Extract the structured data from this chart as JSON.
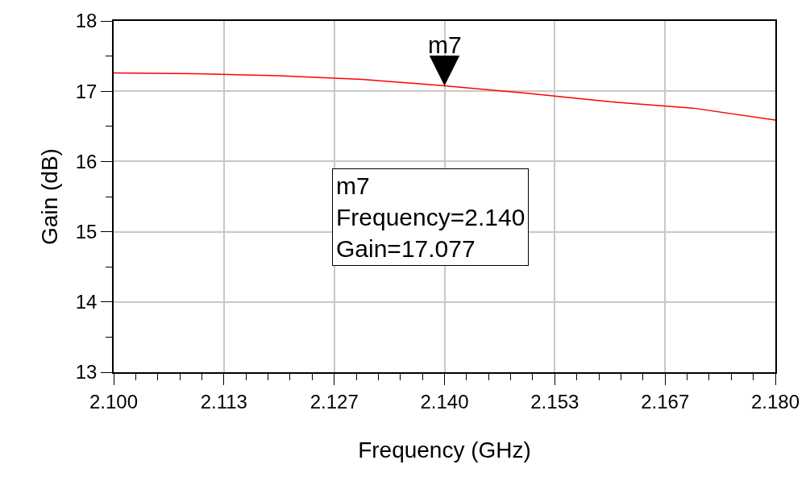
{
  "chart_data": {
    "type": "line",
    "xlabel": "Frequency (GHz)",
    "ylabel": "Gain (dB)",
    "x": [
      2.1,
      2.11,
      2.12,
      2.13,
      2.14,
      2.15,
      2.16,
      2.17,
      2.18
    ],
    "series": [
      {
        "color": "#ff0000",
        "values": [
          17.26,
          17.25,
          17.22,
          17.17,
          17.077,
          16.97,
          16.85,
          16.76,
          16.59
        ]
      }
    ],
    "xlim": [
      2.1,
      2.18
    ],
    "xticks": [
      {
        "value": 2.1,
        "label": "2.100"
      },
      {
        "value": 2.11333,
        "label": "2.113"
      },
      {
        "value": 2.12667,
        "label": "2.127"
      },
      {
        "value": 2.14,
        "label": "2.140"
      },
      {
        "value": 2.15333,
        "label": "2.153"
      },
      {
        "value": 2.16667,
        "label": "2.167"
      },
      {
        "value": 2.18,
        "label": "2.180"
      }
    ],
    "ylim": [
      13,
      18
    ],
    "yticks": [
      13,
      14,
      15,
      16,
      17,
      18
    ],
    "grid": true,
    "marker": "none",
    "line_style": "solid",
    "annotations": [
      {
        "text": "m7",
        "x": 2.14,
        "y": 17.077
      },
      "m7\nFrequency=2.140\nGain=17.077"
    ]
  }
}
